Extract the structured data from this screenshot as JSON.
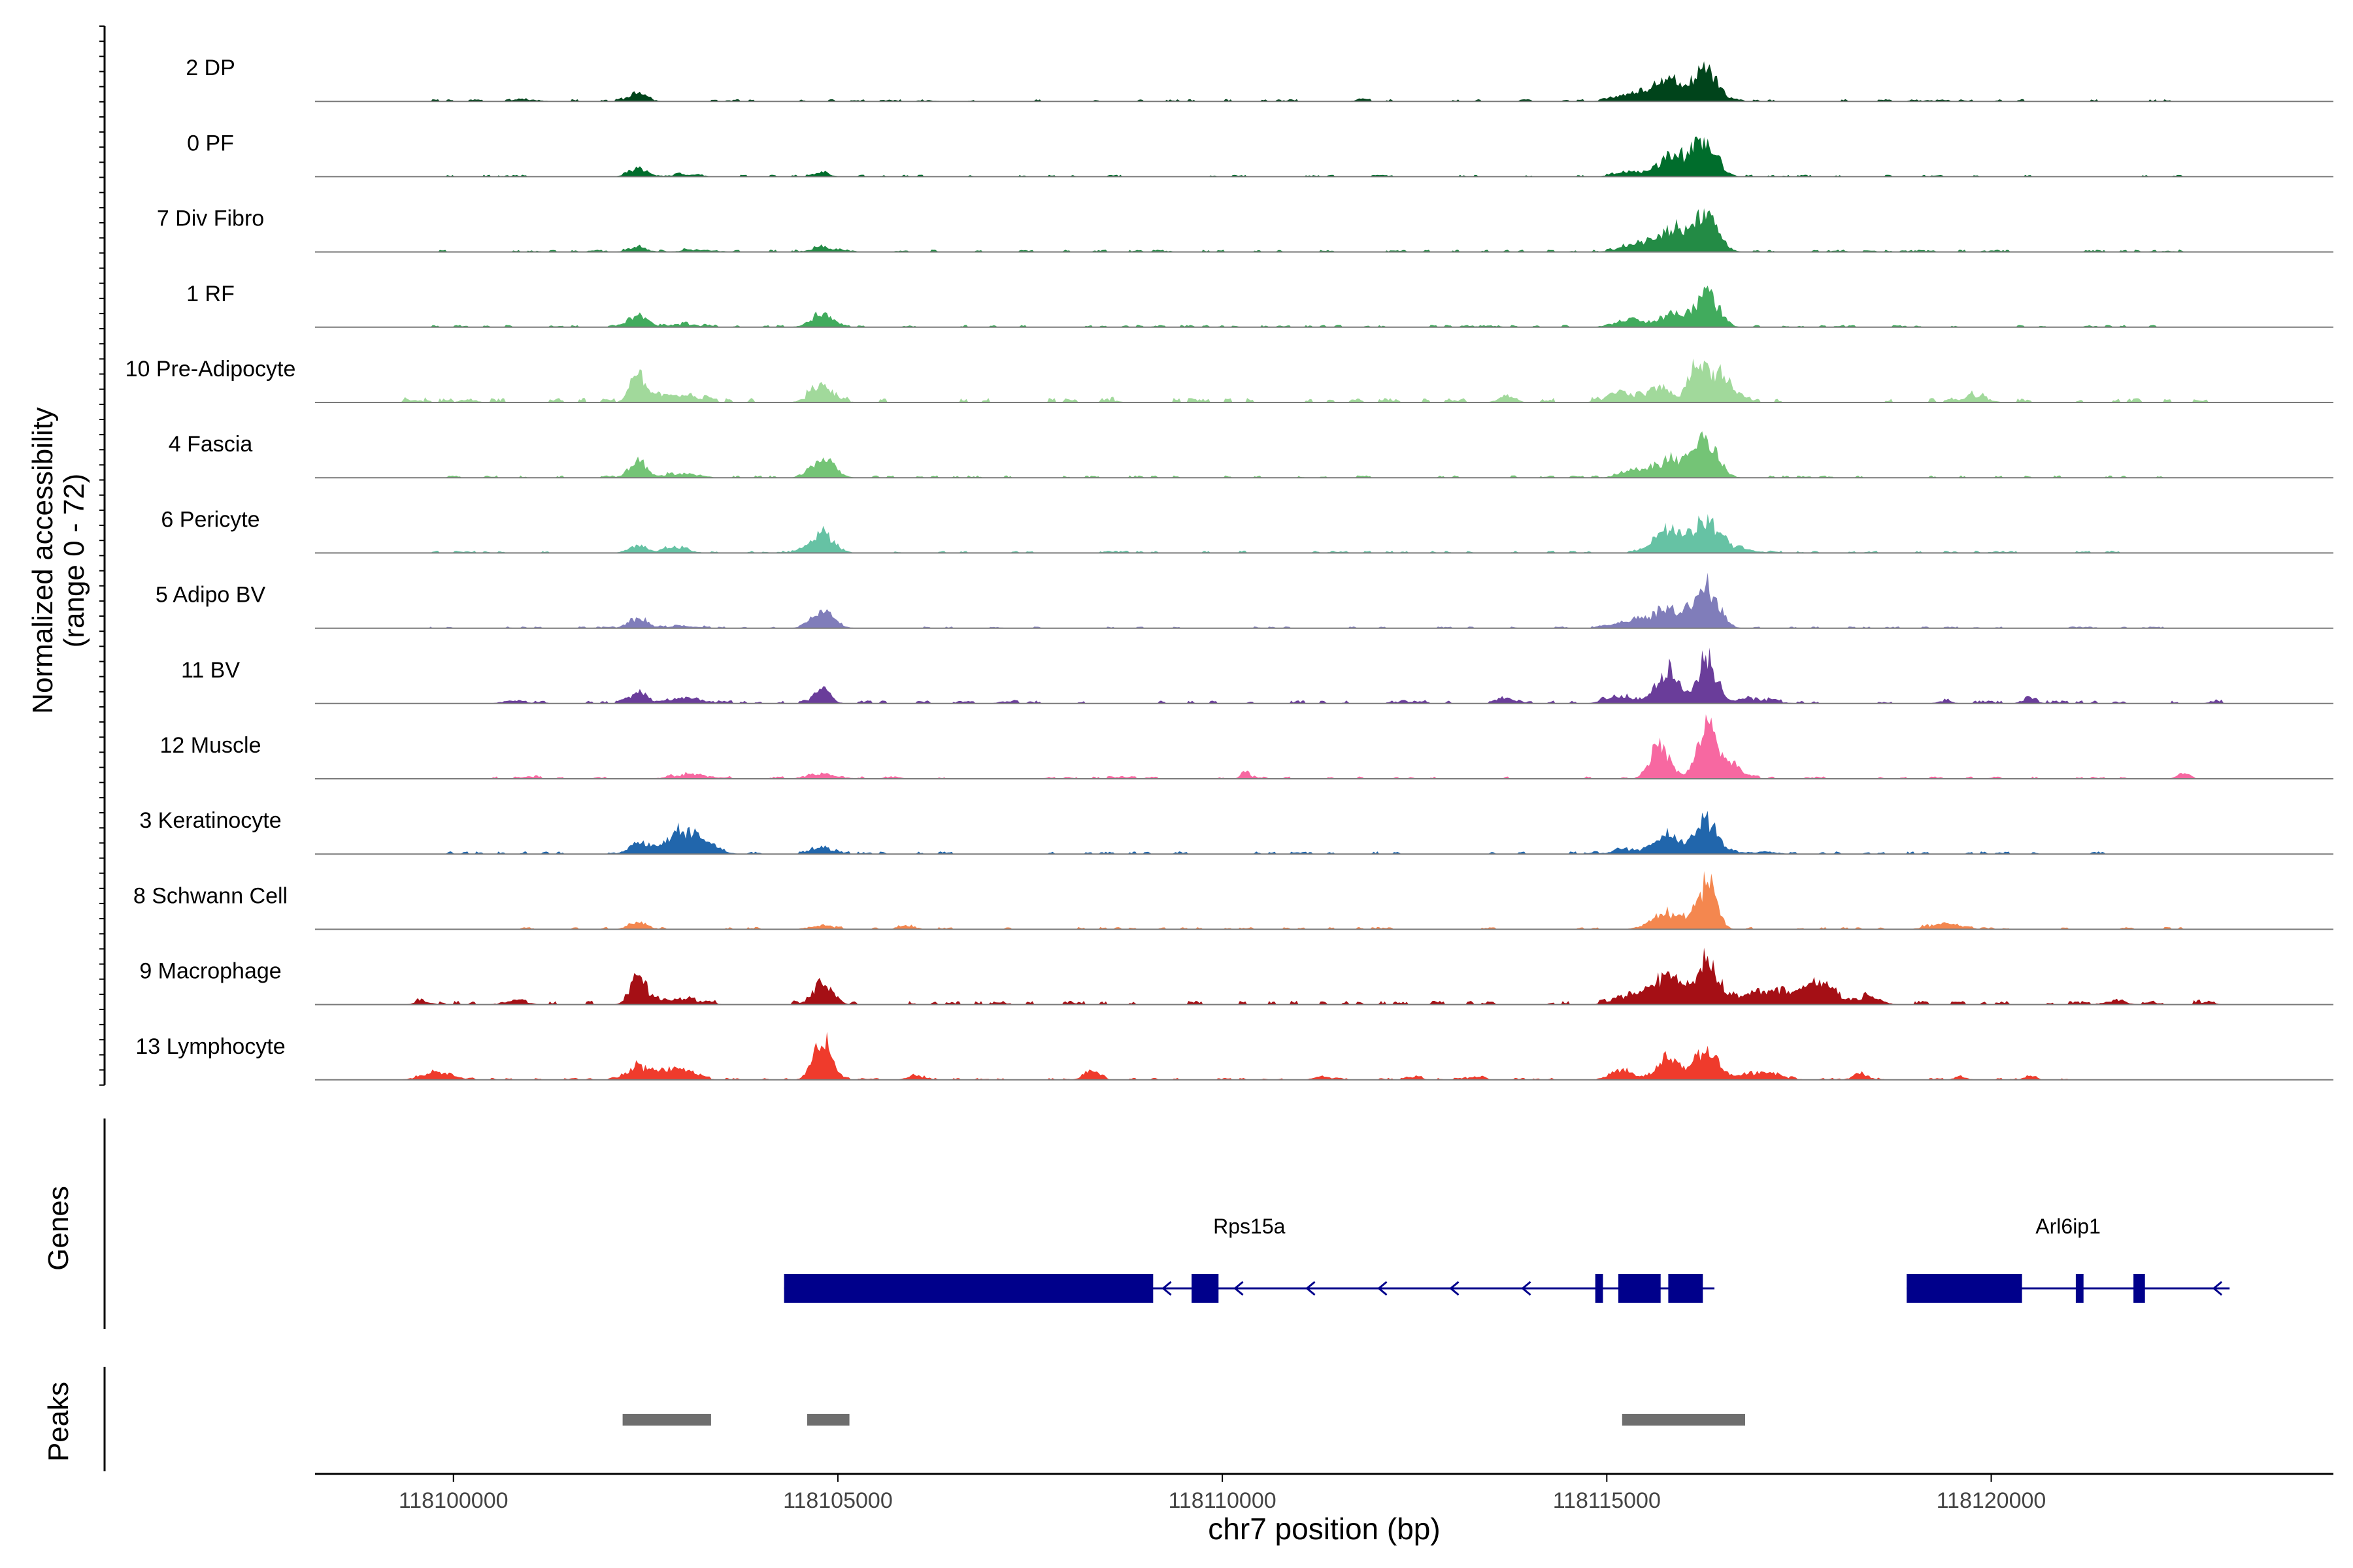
{
  "chart_data": {
    "type": "area",
    "title": "",
    "ylabel": "Normalized accessibility",
    "ylabel_range": "(range 0 - 72)",
    "ylim": [
      0,
      72
    ],
    "xlabel": "chr7 position (bp)",
    "xlim": [
      118098200,
      118124450
    ],
    "xticks": [
      {
        "value": 118100000,
        "label": "118100000"
      },
      {
        "value": 118105000,
        "label": "118105000"
      },
      {
        "value": 118110000,
        "label": "118110000"
      },
      {
        "value": 118115000,
        "label": "118115000"
      },
      {
        "value": 118120000,
        "label": "118120000"
      }
    ],
    "tracks": [
      {
        "name": "2 DP",
        "color": "#00441b",
        "peaks": [
          [
            118102400,
            10,
            120
          ],
          [
            118115800,
            28,
            200
          ],
          [
            118116300,
            40,
            150
          ],
          [
            118115300,
            8,
            200
          ],
          [
            118101000,
            2,
            150
          ],
          [
            118106200,
            1.5,
            80
          ],
          [
            118111800,
            1.5,
            100
          ],
          [
            118119200,
            1.5,
            80
          ]
        ],
        "background": [
          118099700,
          118122500,
          0.6
        ]
      },
      {
        "name": "0 PF",
        "color": "#006d2c",
        "peaks": [
          [
            118102400,
            10,
            120
          ],
          [
            118104800,
            5,
            100
          ],
          [
            118115900,
            28,
            200
          ],
          [
            118116300,
            40,
            150
          ],
          [
            118115300,
            6,
            200
          ],
          [
            118103000,
            3,
            200
          ]
        ],
        "background": [
          118099700,
          118122500,
          0.5
        ]
      },
      {
        "name": "7 Div Fibro",
        "color": "#238b45",
        "peaks": [
          [
            118102400,
            6,
            120
          ],
          [
            118104800,
            6,
            150
          ],
          [
            118115900,
            32,
            200
          ],
          [
            118116300,
            44,
            150
          ],
          [
            118115400,
            12,
            200
          ],
          [
            118103200,
            3,
            200
          ],
          [
            118122300,
            1.5,
            80
          ]
        ],
        "background": [
          118099700,
          118122500,
          0.6
        ]
      },
      {
        "name": "1 RF",
        "color": "#41ab5d",
        "peaks": [
          [
            118102400,
            15,
            120
          ],
          [
            118104800,
            16,
            150
          ],
          [
            118115900,
            16,
            200
          ],
          [
            118116300,
            44,
            150
          ],
          [
            118115300,
            10,
            200
          ],
          [
            118103000,
            4,
            200
          ]
        ],
        "background": [
          118099700,
          118122500,
          0.6
        ]
      },
      {
        "name": "10 Pre-Adipocyte",
        "color": "#a1d99b",
        "peaks": [
          [
            118102400,
            40,
            100
          ],
          [
            118102900,
            10,
            250
          ],
          [
            118104800,
            22,
            150
          ],
          [
            118115700,
            20,
            150
          ],
          [
            118116200,
            55,
            120
          ],
          [
            118116500,
            30,
            150
          ],
          [
            118115200,
            12,
            200
          ],
          [
            118113700,
            10,
            100
          ],
          [
            118119800,
            8,
            150
          ],
          [
            118100200,
            4,
            100
          ],
          [
            118099500,
            3,
            100
          ],
          [
            118108600,
            2,
            80
          ]
        ],
        "background": [
          118099300,
          118123000,
          1.2
        ]
      },
      {
        "name": "4 Fascia",
        "color": "#74c476",
        "peaks": [
          [
            118102400,
            20,
            120
          ],
          [
            118104800,
            26,
            150
          ],
          [
            118115900,
            25,
            200
          ],
          [
            118116300,
            44,
            150
          ],
          [
            118115400,
            10,
            200
          ],
          [
            118103000,
            6,
            200
          ]
        ],
        "background": [
          118099700,
          118122500,
          0.6
        ]
      },
      {
        "name": "6 Pericyte",
        "color": "#66c2a4",
        "peaks": [
          [
            118102400,
            10,
            120
          ],
          [
            118102900,
            8,
            150
          ],
          [
            118104800,
            26,
            150
          ],
          [
            118115800,
            30,
            200
          ],
          [
            118116300,
            42,
            150
          ],
          [
            118116700,
            6,
            200
          ]
        ],
        "background": [
          118099700,
          118122500,
          0.6
        ]
      },
      {
        "name": "5 Adipo BV",
        "color": "#807dba",
        "peaks": [
          [
            118102400,
            14,
            120
          ],
          [
            118104800,
            20,
            150
          ],
          [
            118115800,
            26,
            200
          ],
          [
            118116300,
            52,
            150
          ],
          [
            118115300,
            10,
            200
          ],
          [
            118103000,
            3,
            200
          ]
        ],
        "background": [
          118099700,
          118122500,
          0.5
        ]
      },
      {
        "name": "11 BV",
        "color": "#6a3d9a",
        "peaks": [
          [
            118102400,
            18,
            100
          ],
          [
            118103000,
            8,
            250
          ],
          [
            118104800,
            20,
            100
          ],
          [
            118115800,
            40,
            150
          ],
          [
            118116300,
            60,
            120
          ],
          [
            118115200,
            10,
            200
          ],
          [
            118113700,
            8,
            100
          ],
          [
            118116900,
            6,
            250
          ],
          [
            118120500,
            6,
            100
          ],
          [
            118100800,
            4,
            150
          ],
          [
            118107200,
            3,
            100
          ],
          [
            118112500,
            3,
            100
          ],
          [
            118119400,
            3,
            100
          ],
          [
            118122900,
            3,
            80
          ]
        ],
        "background": [
          118101000,
          118123000,
          0.8
        ]
      },
      {
        "name": "12 Muscle",
        "color": "#f768a1",
        "peaks": [
          [
            118115700,
            42,
            130
          ],
          [
            118116300,
            65,
            120
          ],
          [
            118116600,
            20,
            150
          ],
          [
            118104800,
            6,
            200
          ],
          [
            118103100,
            5,
            250
          ],
          [
            118110300,
            8,
            60
          ],
          [
            118122500,
            8,
            80
          ],
          [
            118101000,
            3,
            100
          ],
          [
            118105700,
            3,
            100
          ],
          [
            118108700,
            3,
            100
          ]
        ],
        "background": [
          118100500,
          118122500,
          0.6
        ]
      },
      {
        "name": "3 Keratinocyte",
        "color": "#2166ac",
        "peaks": [
          [
            118102400,
            14,
            120
          ],
          [
            118103000,
            30,
            250
          ],
          [
            118104800,
            10,
            120
          ],
          [
            118115800,
            25,
            150
          ],
          [
            118116300,
            44,
            150
          ],
          [
            118115300,
            6,
            200
          ],
          [
            118117000,
            3,
            200
          ]
        ],
        "background": [
          118099700,
          118122500,
          0.7
        ]
      },
      {
        "name": "8 Schwann Cell",
        "color": "#f4874f",
        "peaks": [
          [
            118102400,
            10,
            120
          ],
          [
            118104800,
            6,
            150
          ],
          [
            118115800,
            22,
            200
          ],
          [
            118116300,
            65,
            120
          ],
          [
            118119400,
            8,
            200
          ],
          [
            118105900,
            5,
            100
          ]
        ],
        "background": [
          118099700,
          118122500,
          0.6
        ]
      },
      {
        "name": "9 Macrophage",
        "color": "#a50f15",
        "peaks": [
          [
            118102400,
            40,
            100
          ],
          [
            118102900,
            8,
            250
          ],
          [
            118104800,
            30,
            130
          ],
          [
            118115800,
            35,
            200
          ],
          [
            118116300,
            52,
            150
          ],
          [
            118117200,
            20,
            400
          ],
          [
            118117800,
            28,
            150
          ],
          [
            118115300,
            12,
            200
          ],
          [
            118100800,
            5,
            150
          ],
          [
            118099600,
            4,
            100
          ],
          [
            118118400,
            10,
            150
          ],
          [
            118121600,
            4,
            150
          ],
          [
            118122800,
            3,
            100
          ]
        ],
        "background": [
          118099500,
          118123000,
          1.0
        ]
      },
      {
        "name": "13 Lymphocyte",
        "color": "#ef3b2c",
        "peaks": [
          [
            118104800,
            50,
            120
          ],
          [
            118102400,
            18,
            150
          ],
          [
            118102900,
            15,
            200
          ],
          [
            118115800,
            30,
            150
          ],
          [
            118116300,
            40,
            150
          ],
          [
            118115200,
            12,
            150
          ],
          [
            118117000,
            10,
            250
          ],
          [
            118099800,
            10,
            200
          ],
          [
            118108300,
            12,
            100
          ],
          [
            118106000,
            6,
            100
          ],
          [
            118111300,
            5,
            100
          ],
          [
            118112500,
            4,
            100
          ],
          [
            118113300,
            4,
            100
          ],
          [
            118118300,
            8,
            100
          ],
          [
            118119600,
            5,
            80
          ],
          [
            118120500,
            5,
            80
          ]
        ],
        "background": [
          118099500,
          118121000,
          0.5
        ]
      }
    ],
    "genes_label": "Genes",
    "genes": [
      {
        "name": "Rps15a",
        "start": 118104300,
        "end": 118116400,
        "strand": "-",
        "exons": [
          [
            118104300,
            118109100
          ],
          [
            118109600,
            118109950
          ],
          [
            118114850,
            118114950
          ],
          [
            118115150,
            118115700
          ],
          [
            118115800,
            118116250
          ]
        ]
      },
      {
        "name": "Arl6ip1",
        "start": 118118900,
        "end": 118123100,
        "strand": "-",
        "exons": [
          [
            118118900,
            118120400
          ],
          [
            118121100,
            118121200
          ],
          [
            118121850,
            118122000
          ]
        ]
      }
    ],
    "peaks_label": "Peaks",
    "peak_regions": [
      [
        118102200,
        118103350
      ],
      [
        118104600,
        118105150
      ],
      [
        118115200,
        118116800
      ]
    ]
  }
}
